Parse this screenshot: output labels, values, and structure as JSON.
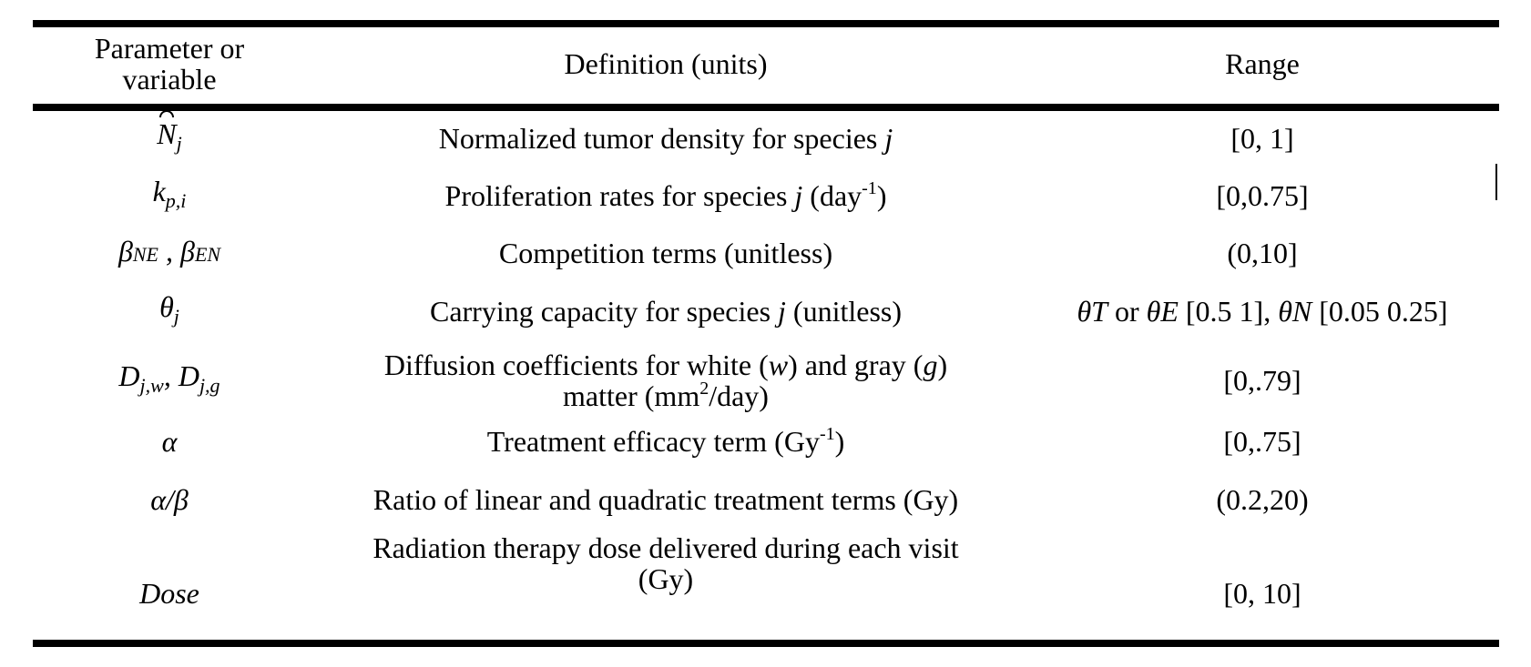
{
  "header": {
    "col1": "Parameter or variable",
    "col2": "Definition (units)",
    "col3": "Range"
  },
  "rows": [
    {
      "symbol": {
        "base": "N",
        "sub": "j",
        "hat": true
      },
      "definition": {
        "text": "Normalized tumor density for species ",
        "var": "j"
      },
      "range": "[0, 1]"
    },
    {
      "symbol": {
        "base": "k",
        "sub": "p,i"
      },
      "definition": {
        "text": "Proliferation rates for species ",
        "var": "j",
        "after": " (day",
        "sup": "-1",
        "close": ")"
      },
      "range": "[0,0.75]"
    },
    {
      "symbol": {
        "a": "β",
        "a_sub": "NE",
        "sep": " , ",
        "b": "β",
        "b_sub": "EN"
      },
      "definition": {
        "text": "Competition terms (unitless)"
      },
      "range": "(0,10]"
    },
    {
      "symbol": {
        "base": "θ",
        "sub": "j"
      },
      "definition": {
        "text": "Carrying capacity for species ",
        "var": "j",
        "after": " (unitless)"
      },
      "range": {
        "t1": "θ",
        "t1_sub": "T",
        "or": " or ",
        "t2": "θ",
        "t2_sub": "E",
        "r1": " [0.5 1], ",
        "t3": "θ",
        "t3_sub": "N",
        "r2": " [0.05 0.25]"
      }
    },
    {
      "symbol": {
        "a": "D",
        "a_sub": "j,w",
        "sep": ", ",
        "b": "D",
        "b_sub": "j,g"
      },
      "definition": {
        "p1": "Diffusion coefficients for white (",
        "w": "w",
        "p2": ") and gray (",
        "g": "g",
        "p3": ")",
        "line2_pre": "matter (mm",
        "sup": "2",
        "line2_post": "/day)"
      },
      "range": "[0,.79]"
    },
    {
      "symbol": {
        "base": "α"
      },
      "definition": {
        "text": "Treatment efficacy term (Gy",
        "sup": "-1",
        "close": ")"
      },
      "range": "[0,.75]"
    },
    {
      "symbol": {
        "base": "α/β"
      },
      "definition": {
        "text": "Ratio of linear and quadratic treatment terms (Gy)"
      },
      "range": "(0.2,20)"
    },
    {
      "symbol": {
        "base": "Dose"
      },
      "definition": {
        "line1": "Radiation therapy dose delivered during each visit",
        "line2": "(Gy)"
      },
      "range": "[0, 10]"
    }
  ]
}
